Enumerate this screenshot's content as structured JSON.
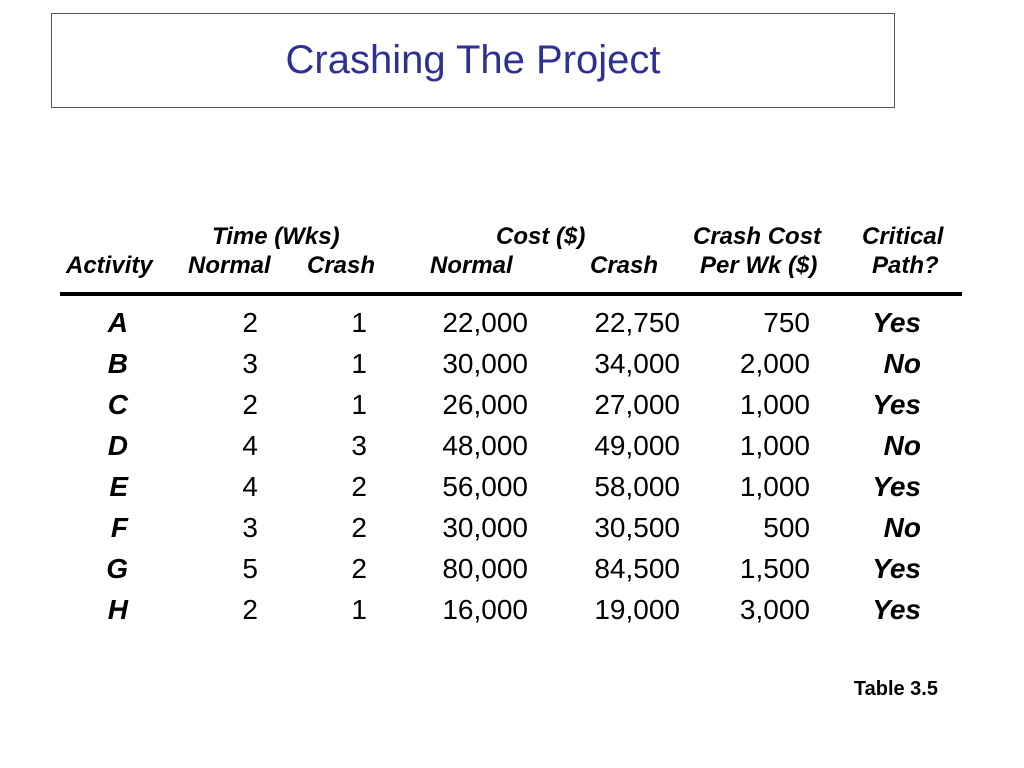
{
  "slide": {
    "title": "Crashing The Project",
    "table_label": "Table 3.5"
  },
  "table": {
    "header_groups": {
      "time": "Time (Wks)",
      "cost": "Cost ($)",
      "crash_cost": "Crash Cost",
      "critical": "Critical"
    },
    "columns": {
      "activity": "Activity",
      "time_normal": "Normal",
      "time_crash": "Crash",
      "cost_normal": "Normal",
      "cost_crash": "Crash",
      "crash_cost_per_wk": "Per Wk ($)",
      "critical_path": "Path?"
    },
    "rows": [
      {
        "activity": "A",
        "time_normal": "2",
        "time_crash": "1",
        "cost_normal": "22,000",
        "cost_crash": "22,750",
        "crash_cost_per_wk": "750",
        "critical_path": "Yes"
      },
      {
        "activity": "B",
        "time_normal": "3",
        "time_crash": "1",
        "cost_normal": "30,000",
        "cost_crash": "34,000",
        "crash_cost_per_wk": "2,000",
        "critical_path": "No"
      },
      {
        "activity": "C",
        "time_normal": "2",
        "time_crash": "1",
        "cost_normal": "26,000",
        "cost_crash": "27,000",
        "crash_cost_per_wk": "1,000",
        "critical_path": "Yes"
      },
      {
        "activity": "D",
        "time_normal": "4",
        "time_crash": "3",
        "cost_normal": "48,000",
        "cost_crash": "49,000",
        "crash_cost_per_wk": "1,000",
        "critical_path": "No"
      },
      {
        "activity": "E",
        "time_normal": "4",
        "time_crash": "2",
        "cost_normal": "56,000",
        "cost_crash": "58,000",
        "crash_cost_per_wk": "1,000",
        "critical_path": "Yes"
      },
      {
        "activity": "F",
        "time_normal": "3",
        "time_crash": "2",
        "cost_normal": "30,000",
        "cost_crash": "30,500",
        "crash_cost_per_wk": "500",
        "critical_path": "No"
      },
      {
        "activity": "G",
        "time_normal": "5",
        "time_crash": "2",
        "cost_normal": "80,000",
        "cost_crash": "84,500",
        "crash_cost_per_wk": "1,500",
        "critical_path": "Yes"
      },
      {
        "activity": "H",
        "time_normal": "2",
        "time_crash": "1",
        "cost_normal": "16,000",
        "cost_crash": "19,000",
        "crash_cost_per_wk": "3,000",
        "critical_path": "Yes"
      }
    ]
  }
}
